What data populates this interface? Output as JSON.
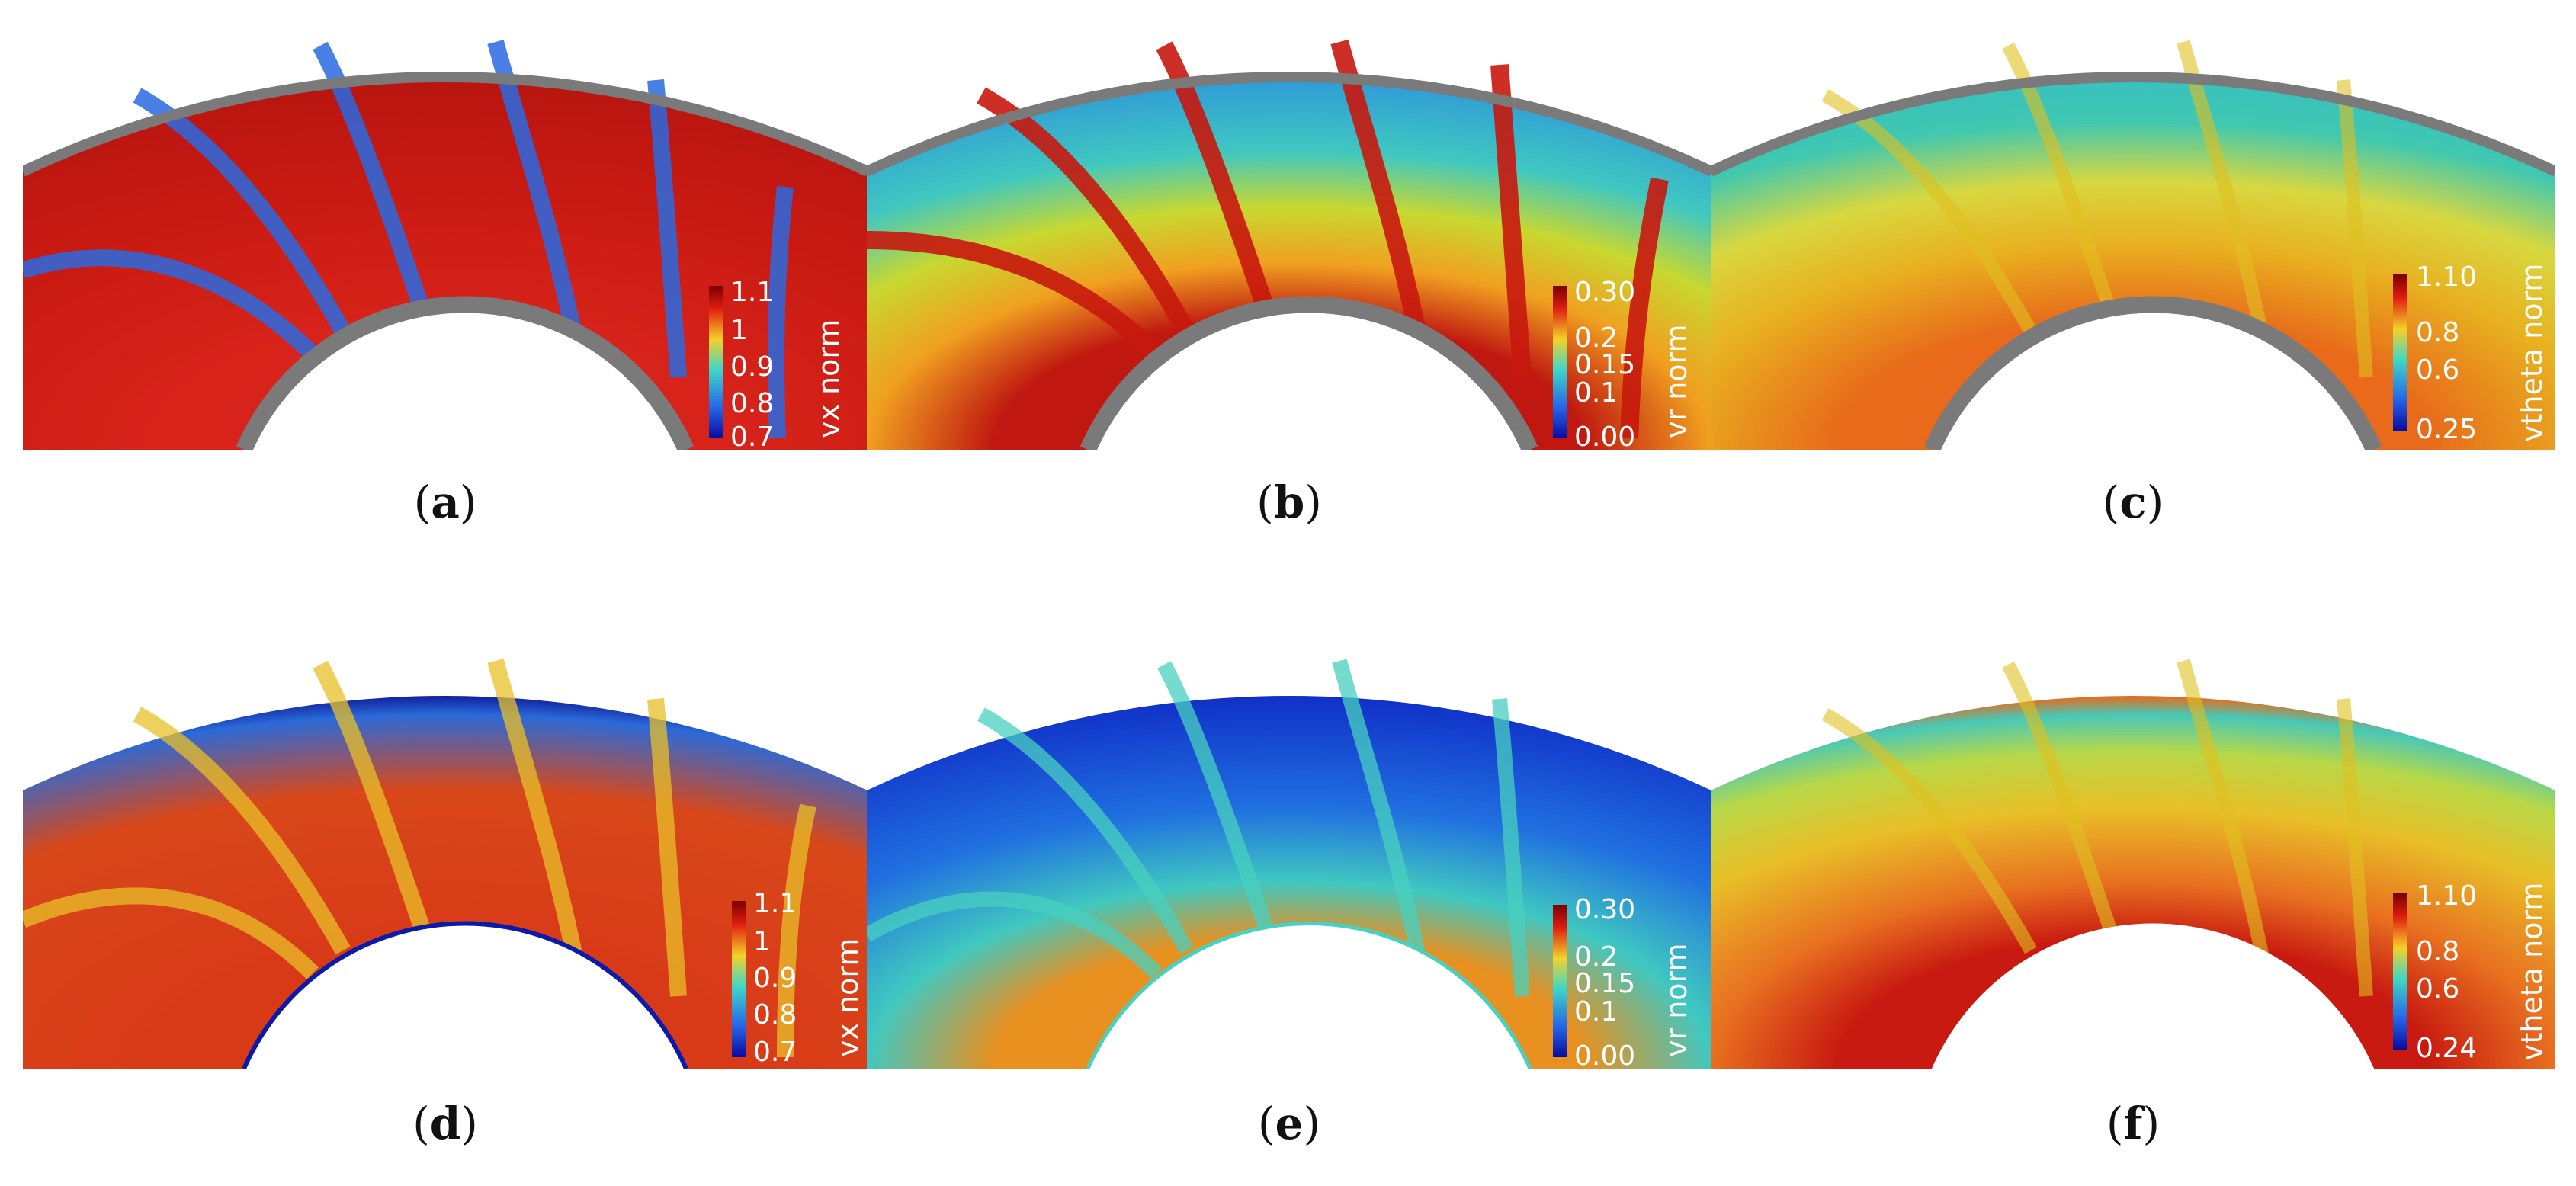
{
  "panels": [
    {
      "label": "a",
      "colorbar_title": "vx norm",
      "ticks": [
        "1.1",
        "1",
        "0.9",
        "0.8",
        "0.7"
      ],
      "style": "vx",
      "wall": "gray"
    },
    {
      "label": "b",
      "colorbar_title": "vr norm",
      "ticks": [
        "0.30",
        "0.2",
        "0.15",
        "0.1",
        "0.00"
      ],
      "style": "vr",
      "wall": "gray"
    },
    {
      "label": "c",
      "colorbar_title": "vtheta norm",
      "ticks": [
        "1.10",
        "0.8",
        "0.6",
        "0.25"
      ],
      "style": "vth",
      "wall": "gray"
    },
    {
      "label": "d",
      "colorbar_title": "vx norm",
      "ticks": [
        "1.1",
        "1",
        "0.9",
        "0.8",
        "0.7"
      ],
      "style": "vx2",
      "wall": "blue"
    },
    {
      "label": "e",
      "colorbar_title": "vr norm",
      "ticks": [
        "0.30",
        "0.2",
        "0.15",
        "0.1",
        "0.00"
      ],
      "style": "vr2",
      "wall": "cyan"
    },
    {
      "label": "f",
      "colorbar_title": "vtheta norm",
      "ticks": [
        "1.10",
        "0.8",
        "0.6",
        "0.24"
      ],
      "style": "vth2",
      "wall": "none"
    }
  ],
  "colors": {
    "wall_gray": "#7a7a7a",
    "jet_dark_red": "#a00000",
    "jet_red": "#d7231a",
    "jet_orange": "#f07c1e",
    "jet_yellow": "#f2e51d",
    "jet_cyan": "#2cc6c8",
    "jet_blue": "#1a5ee0",
    "jet_dark_blue": "#0b1aa8"
  }
}
